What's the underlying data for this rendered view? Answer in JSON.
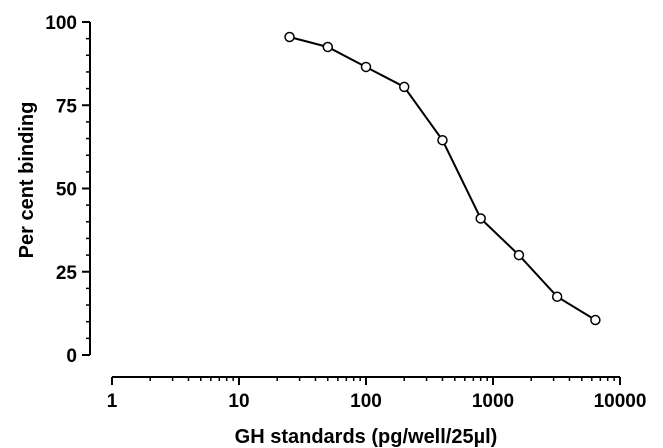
{
  "chart_data": {
    "type": "line",
    "xlabel": "GH standards (pg/well/25µl)",
    "ylabel": "Per cent binding",
    "xscale": "log",
    "xlim": [
      1,
      10000
    ],
    "ylim": [
      0,
      100
    ],
    "x_ticks": [
      1,
      10,
      100,
      1000,
      10000
    ],
    "x_tick_labels": [
      "1",
      "10",
      "100",
      "1000",
      "10000"
    ],
    "y_ticks": [
      0,
      25,
      50,
      75,
      100
    ],
    "y_tick_labels": [
      "0",
      "25",
      "50",
      "75",
      "100"
    ],
    "grid": false,
    "series": [
      {
        "x": [
          25,
          50,
          100,
          200,
          400,
          800,
          1600,
          3200,
          6400
        ],
        "y": [
          95.5,
          92.5,
          86.5,
          80.5,
          64.5,
          41,
          30,
          17.5,
          10.5
        ],
        "color": "#000000",
        "marker": "open-circle"
      }
    ]
  }
}
